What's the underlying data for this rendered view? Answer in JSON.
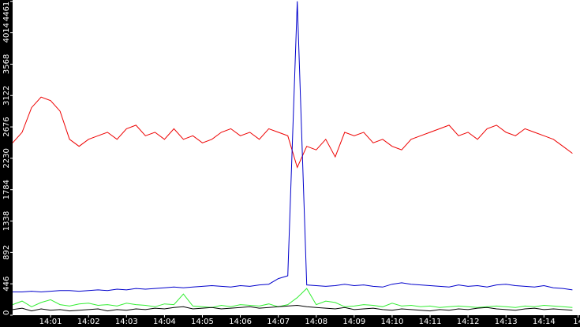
{
  "chart_data": {
    "type": "line",
    "xlim": [
      0,
      14.95
    ],
    "ylim": [
      0,
      4480
    ],
    "xticks": [
      {
        "value": 1,
        "label": "14:01"
      },
      {
        "value": 2,
        "label": "14:02"
      },
      {
        "value": 3,
        "label": "14:03"
      },
      {
        "value": 4,
        "label": "14:04"
      },
      {
        "value": 5,
        "label": "14:05"
      },
      {
        "value": 6,
        "label": "14:06"
      },
      {
        "value": 7,
        "label": "14:07"
      },
      {
        "value": 8,
        "label": "14:08"
      },
      {
        "value": 9,
        "label": "14:09"
      },
      {
        "value": 10,
        "label": "14:10"
      },
      {
        "value": 11,
        "label": "14:11"
      },
      {
        "value": 12,
        "label": "14:12"
      },
      {
        "value": 13,
        "label": "14:13"
      },
      {
        "value": 14,
        "label": "14:14"
      },
      {
        "value": 14.9,
        "label": "14"
      }
    ],
    "yticks": [
      0,
      446,
      892,
      1338,
      1784,
      2230,
      2676,
      3122,
      3568,
      4014,
      4461
    ],
    "x": [
      0,
      0.25,
      0.5,
      0.75,
      1,
      1.25,
      1.5,
      1.75,
      2,
      2.25,
      2.5,
      2.75,
      3,
      3.25,
      3.5,
      3.75,
      4,
      4.25,
      4.5,
      4.75,
      5,
      5.25,
      5.5,
      5.75,
      6,
      6.25,
      6.5,
      6.75,
      7,
      7.25,
      7.5,
      7.75,
      8,
      8.25,
      8.5,
      8.75,
      9,
      9.25,
      9.5,
      9.75,
      10,
      10.25,
      10.5,
      10.75,
      11,
      11.25,
      11.5,
      11.75,
      12,
      12.25,
      12.5,
      12.75,
      13,
      13.25,
      13.5,
      13.75,
      14,
      14.25,
      14.5,
      14.75
    ],
    "series": [
      {
        "color": "#ee0000",
        "values": [
          2450,
          2600,
          2950,
          3100,
          3050,
          2900,
          2500,
          2400,
          2500,
          2550,
          2600,
          2500,
          2650,
          2700,
          2550,
          2600,
          2500,
          2650,
          2500,
          2550,
          2450,
          2500,
          2600,
          2650,
          2550,
          2600,
          2500,
          2650,
          2600,
          2550,
          2100,
          2400,
          2350,
          2500,
          2250,
          2600,
          2550,
          2600,
          2450,
          2500,
          2400,
          2350,
          2500,
          2550,
          2600,
          2650,
          2700,
          2550,
          2600,
          2500,
          2650,
          2700,
          2600,
          2550,
          2650,
          2600,
          2550,
          2500,
          2400,
          2300
        ]
      },
      {
        "color": "#0000cc",
        "values": [
          330,
          330,
          340,
          330,
          340,
          350,
          350,
          340,
          350,
          360,
          350,
          370,
          360,
          380,
          370,
          380,
          390,
          400,
          390,
          400,
          410,
          420,
          410,
          400,
          420,
          410,
          430,
          440,
          520,
          560,
          4461,
          430,
          420,
          410,
          420,
          440,
          420,
          430,
          410,
          400,
          440,
          460,
          440,
          430,
          420,
          410,
          400,
          430,
          410,
          420,
          400,
          430,
          440,
          420,
          410,
          400,
          420,
          390,
          380,
          360
        ]
      },
      {
        "color": "#33ee33",
        "values": [
          150,
          200,
          120,
          180,
          220,
          150,
          130,
          160,
          170,
          140,
          150,
          130,
          170,
          150,
          140,
          120,
          160,
          150,
          300,
          130,
          120,
          110,
          140,
          120,
          150,
          140,
          130,
          160,
          120,
          150,
          250,
          380,
          150,
          200,
          180,
          120,
          130,
          150,
          140,
          120,
          170,
          130,
          140,
          120,
          130,
          110,
          120,
          130,
          120,
          110,
          120,
          130,
          120,
          110,
          130,
          120,
          140,
          130,
          120,
          110
        ]
      },
      {
        "color": "#000000",
        "values": [
          80,
          100,
          60,
          90,
          70,
          80,
          60,
          70,
          80,
          90,
          60,
          80,
          70,
          90,
          80,
          100,
          90,
          110,
          120,
          90,
          100,
          110,
          90,
          100,
          110,
          120,
          100,
          110,
          120,
          130,
          140,
          120,
          110,
          100,
          90,
          110,
          80,
          90,
          100,
          80,
          70,
          90,
          80,
          70,
          60,
          80,
          70,
          90,
          80,
          100,
          110,
          90,
          80,
          70,
          90,
          100,
          80,
          90,
          80,
          70
        ]
      }
    ]
  }
}
